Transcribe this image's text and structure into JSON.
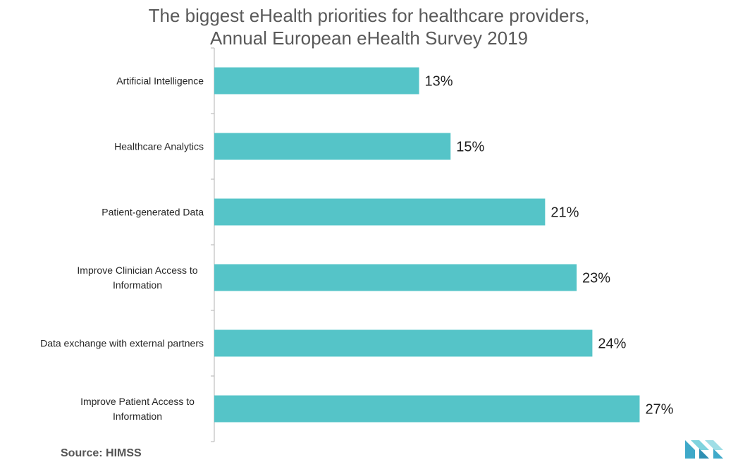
{
  "title_lines": [
    "The biggest eHealth priorities for healthcare providers,",
    "Annual European eHealth Survey 2019"
  ],
  "source": "Source: HIMSS",
  "logo_icon": "mordor-intelligence-logo-icon",
  "chart_data": {
    "type": "bar",
    "orientation": "horizontal",
    "title": "The biggest eHealth priorities for healthcare providers, Annual European eHealth Survey 2019",
    "categories": [
      [
        "Artificial Intelligence"
      ],
      [
        "Healthcare Analytics"
      ],
      [
        "Patient-generated Data"
      ],
      [
        "Improve Clinician Access to",
        "Information"
      ],
      [
        "Data exchange with external partners"
      ],
      [
        "Improve Patient Access to",
        "Information"
      ]
    ],
    "values": [
      13,
      15,
      21,
      23,
      24,
      27
    ],
    "value_labels": [
      "13%",
      "15%",
      "21%",
      "23%",
      "24%",
      "27%"
    ],
    "xlim": [
      0,
      32
    ],
    "bar_color": "#55c4c8",
    "axis_color": "#b3b3b3",
    "grid": false,
    "legend": "none"
  }
}
